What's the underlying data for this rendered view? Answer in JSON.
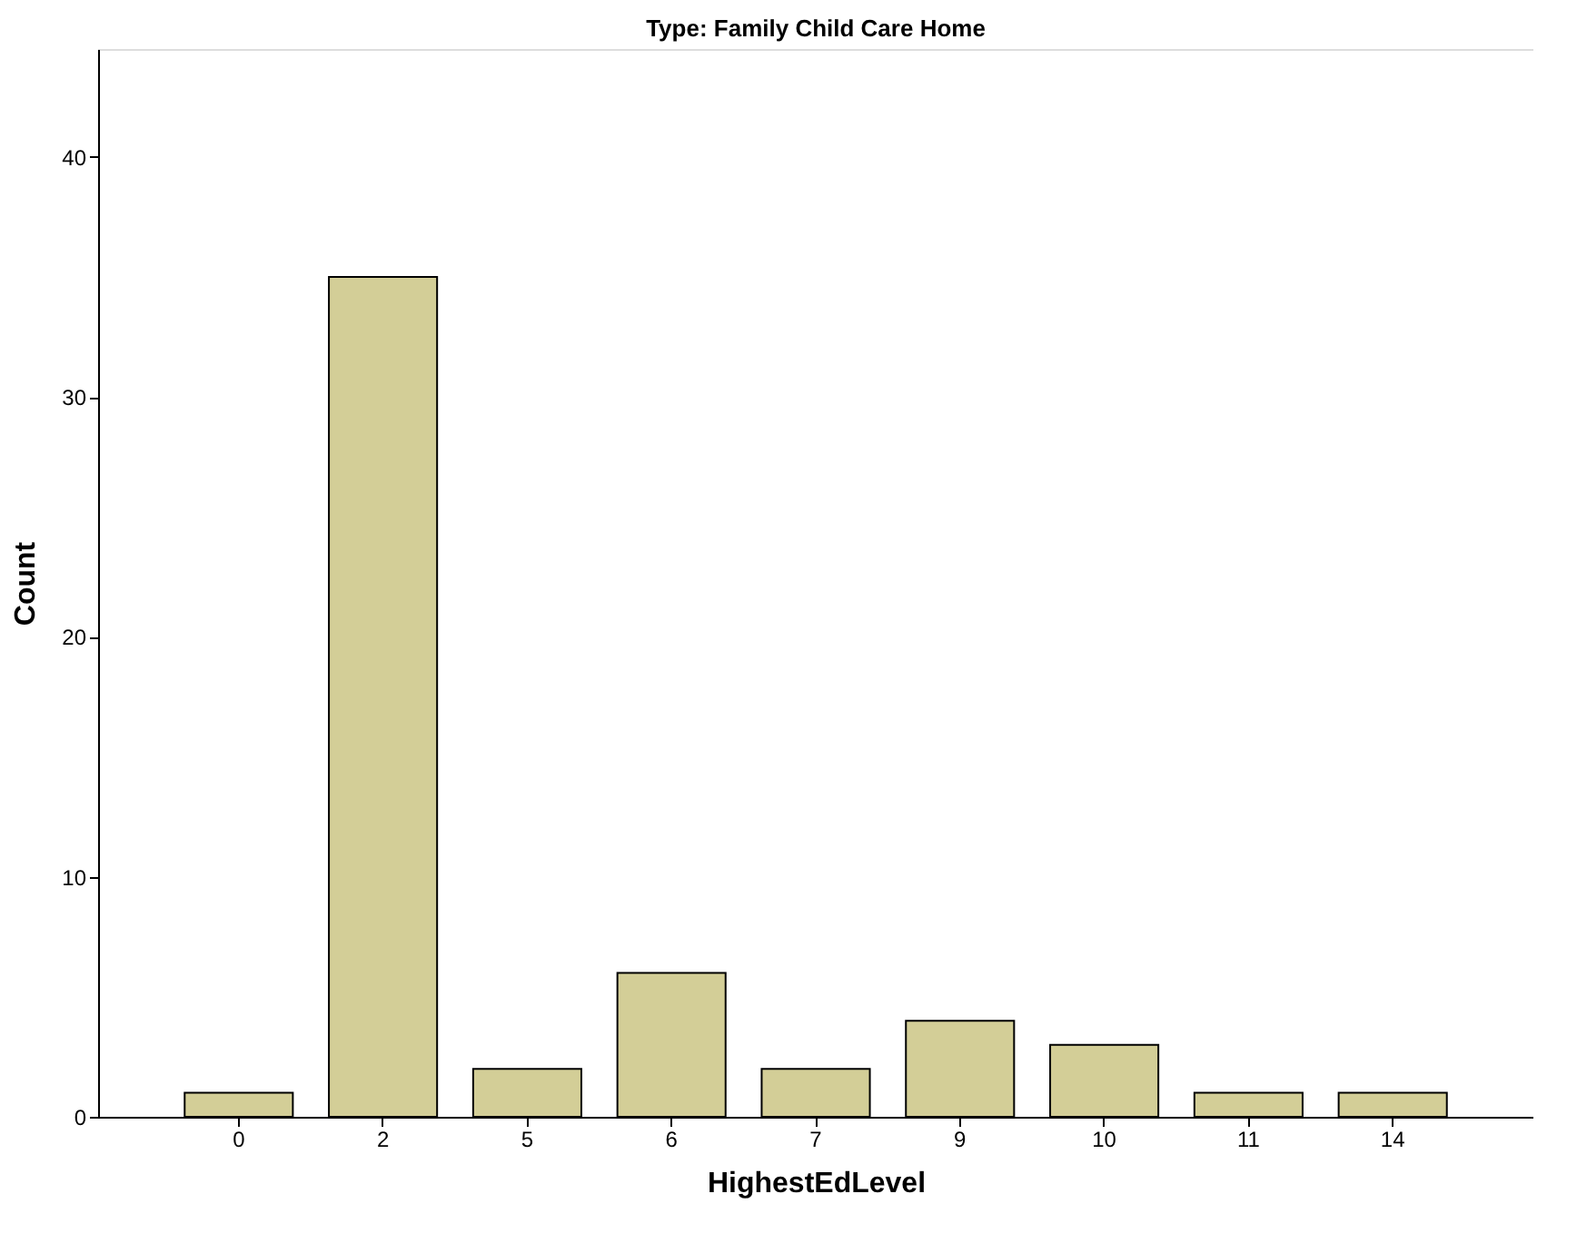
{
  "chart_data": {
    "type": "bar",
    "title": "Type: Family Child Care Home",
    "xlabel": "HighestEdLevel",
    "ylabel": "Count",
    "categories": [
      "0",
      "2",
      "5",
      "6",
      "7",
      "9",
      "10",
      "11",
      "14"
    ],
    "values": [
      1,
      35,
      2,
      6,
      2,
      4,
      3,
      1,
      1
    ],
    "color": "#d3ce97",
    "ylim": [
      0,
      44.5
    ],
    "yticks": [
      0,
      10,
      20,
      30,
      40
    ],
    "grid": false
  }
}
